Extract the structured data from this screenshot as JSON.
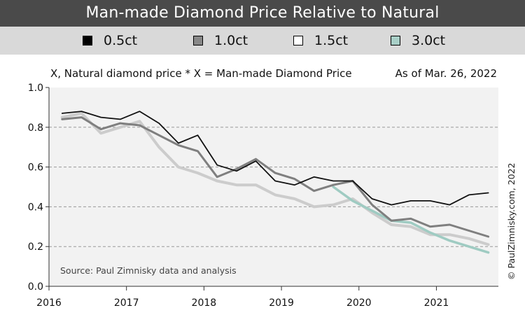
{
  "header": {
    "title": "Man-made Diamond Price Relative to Natural"
  },
  "legend": [
    {
      "label": "0.5ct",
      "color": "#000000"
    },
    {
      "label": "1.0ct",
      "color": "#888888"
    },
    {
      "label": "1.5ct",
      "color": "#ffffff"
    },
    {
      "label": "3.0ct",
      "color": "#a8cfc7"
    }
  ],
  "chart_data": {
    "type": "line",
    "subtitle": "X, Natural diamond price * X = Man-made Diamond Price",
    "as_of": "As of Mar. 26, 2022",
    "source": "Source: Paul Zimnisky data and analysis",
    "credit": "© PaulZimnisky.com, 2022",
    "xlim": [
      2016,
      2021.8
    ],
    "ylim": [
      0,
      1.0
    ],
    "x_ticks": [
      2016,
      2017,
      2018,
      2019,
      2020,
      2021
    ],
    "x_tick_labels": [
      "2016",
      "2017",
      "2018",
      "2019",
      "2020",
      "2021"
    ],
    "y_ticks": [
      0,
      0.2,
      0.4,
      0.6,
      0.8,
      1.0
    ],
    "y_tick_labels": [
      "0.0",
      "0.2",
      "0.4",
      "0.6",
      "0.8",
      "1.0"
    ],
    "grid": "horizontal-dashed",
    "series": [
      {
        "name": "0.5ct",
        "color": "#111111",
        "width": 1.8,
        "x": [
          2016.17,
          2016.42,
          2016.67,
          2016.92,
          2017.17,
          2017.42,
          2017.67,
          2017.92,
          2018.17,
          2018.42,
          2018.67,
          2018.92,
          2019.17,
          2019.42,
          2019.67,
          2019.92,
          2020.17,
          2020.42,
          2020.67,
          2020.92,
          2021.17,
          2021.42,
          2021.67
        ],
        "values": [
          0.87,
          0.88,
          0.85,
          0.84,
          0.88,
          0.82,
          0.72,
          0.76,
          0.61,
          0.58,
          0.63,
          0.53,
          0.51,
          0.55,
          0.53,
          0.53,
          0.44,
          0.41,
          0.43,
          0.43,
          0.41,
          0.46,
          0.47
        ]
      },
      {
        "name": "1.0ct",
        "color": "#7f7f7f",
        "width": 3,
        "x": [
          2016.17,
          2016.42,
          2016.67,
          2016.92,
          2017.17,
          2017.42,
          2017.67,
          2017.92,
          2018.17,
          2018.42,
          2018.67,
          2018.92,
          2019.17,
          2019.42,
          2019.67,
          2019.92,
          2020.17,
          2020.42,
          2020.67,
          2020.92,
          2021.17,
          2021.42,
          2021.67
        ],
        "values": [
          0.84,
          0.85,
          0.79,
          0.82,
          0.81,
          0.76,
          0.71,
          0.68,
          0.55,
          0.59,
          0.64,
          0.57,
          0.54,
          0.48,
          0.51,
          0.53,
          0.41,
          0.33,
          0.34,
          0.3,
          0.31,
          0.28,
          0.25
        ]
      },
      {
        "name": "1.5ct",
        "color": "#cccccc",
        "width": 4,
        "x": [
          2016.17,
          2016.42,
          2016.67,
          2016.92,
          2017.17,
          2017.42,
          2017.67,
          2017.92,
          2018.17,
          2018.42,
          2018.67,
          2018.92,
          2019.17,
          2019.42,
          2019.67,
          2019.92,
          2020.17,
          2020.42,
          2020.67,
          2020.92,
          2021.17,
          2021.42,
          2021.67
        ],
        "values": [
          0.85,
          0.87,
          0.77,
          0.8,
          0.83,
          0.7,
          0.6,
          0.57,
          0.53,
          0.51,
          0.51,
          0.46,
          0.44,
          0.4,
          0.41,
          0.44,
          0.37,
          0.31,
          0.3,
          0.26,
          0.26,
          0.24,
          0.21
        ]
      },
      {
        "name": "3.0ct",
        "color": "#9fcbc2",
        "width": 3.5,
        "x": [
          2019.67,
          2019.92,
          2020.17,
          2020.42,
          2020.67,
          2020.92,
          2021.17,
          2021.42,
          2021.67
        ],
        "values": [
          0.5,
          0.43,
          0.38,
          0.33,
          0.32,
          0.27,
          0.23,
          0.2,
          0.17
        ]
      }
    ]
  }
}
